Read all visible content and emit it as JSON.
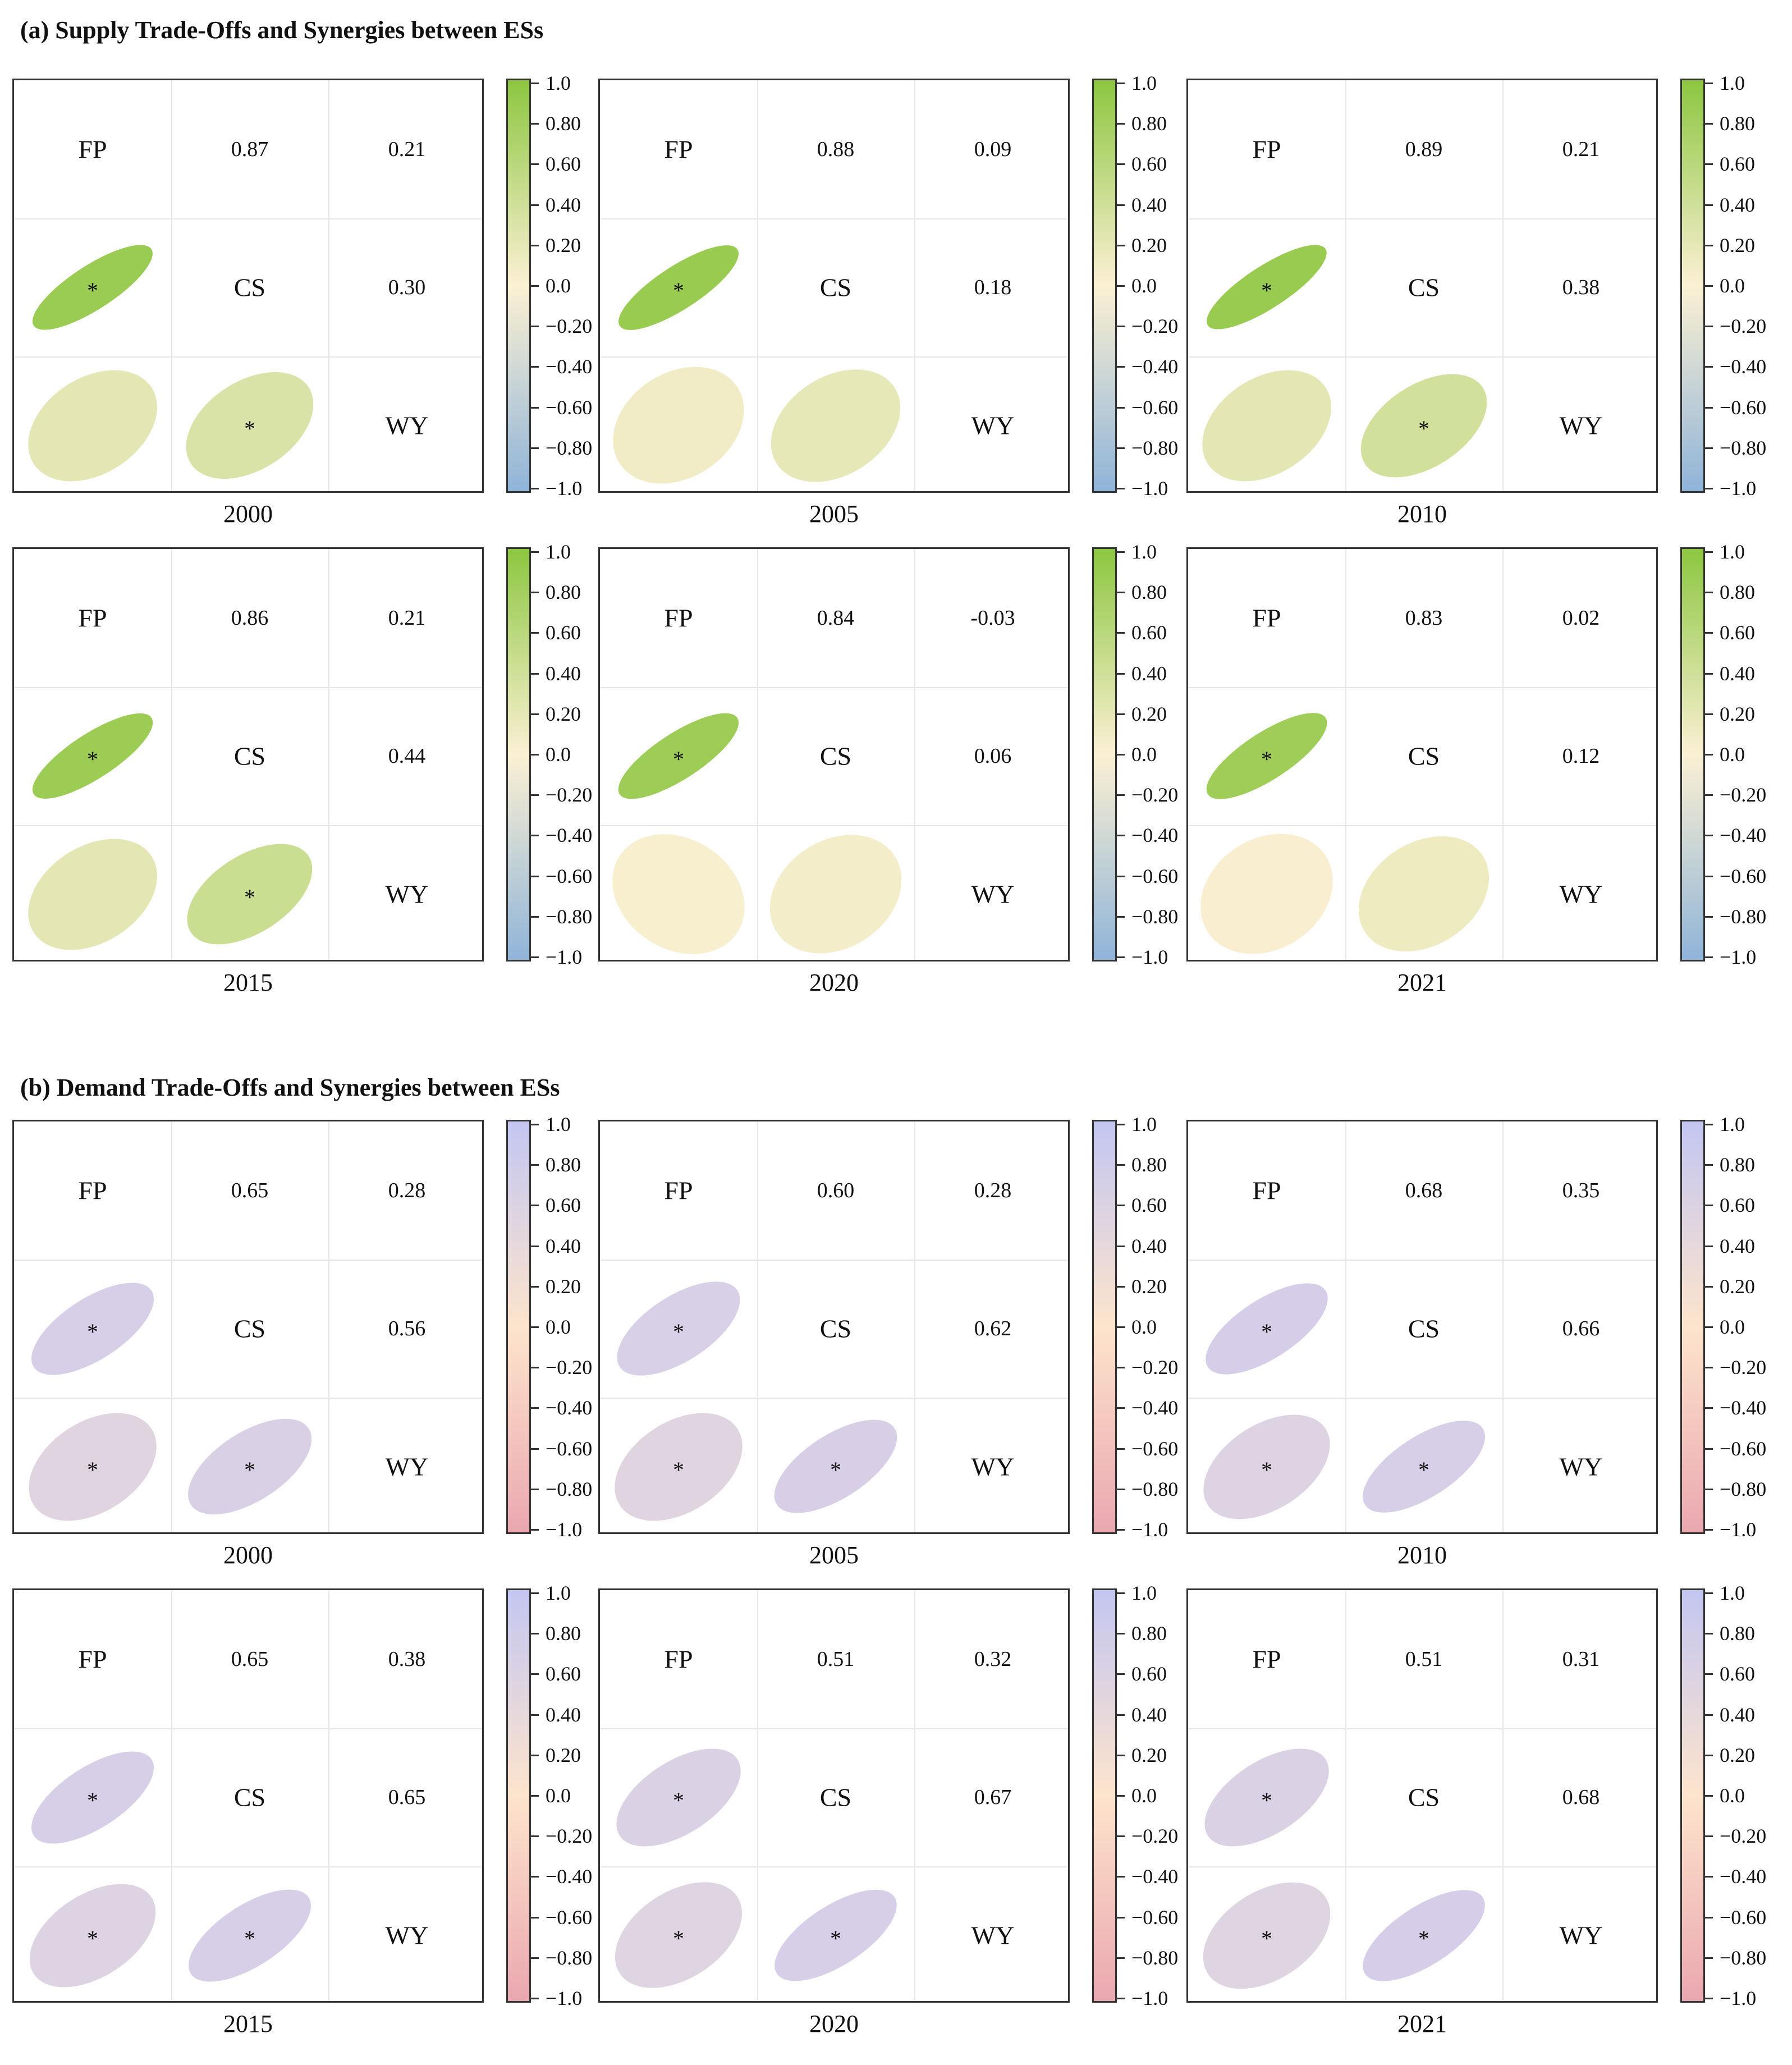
{
  "sections": [
    {
      "title": "(a) Supply Trade-Offs and Synergies between ESs",
      "colorbar": {
        "top": "#8cc63f",
        "mid": "#fbf0d3",
        "bottom": "#8fb4d8"
      },
      "ellipse_low": "#fbf0d3",
      "ellipse_high": "#8cc63f"
    },
    {
      "title": "(b) Demand Trade-Offs and Synergies between ESs",
      "colorbar": {
        "top": "#c3c6f2",
        "mid": "#fde4cc",
        "bottom": "#eaa7b0"
      },
      "ellipse_low": "#e6d8dc",
      "ellipse_high": "#cfcaee"
    }
  ],
  "colorbar_ticks": [
    "1.0",
    "0.80",
    "0.60",
    "0.40",
    "0.20",
    "0.0",
    "−0.20",
    "−0.40",
    "−0.60",
    "−0.80",
    "−1.0"
  ],
  "chart_data": [
    {
      "type": "heatmap",
      "section": "supply",
      "year": "2000",
      "variables": [
        "FP",
        "CS",
        "WY"
      ],
      "matrix": [
        [
          1,
          0.87,
          0.21
        ],
        [
          0.87,
          1,
          0.3
        ],
        [
          0.21,
          0.3,
          1
        ]
      ],
      "labels": {
        "fp_cs": "0.87",
        "fp_wy": "0.21",
        "cs_wy": "0.30"
      },
      "significant": {
        "fp_cs": true,
        "fp_wy": false,
        "cs_wy": true
      },
      "clim": [
        -1,
        1
      ]
    },
    {
      "type": "heatmap",
      "section": "supply",
      "year": "2005",
      "variables": [
        "FP",
        "CS",
        "WY"
      ],
      "matrix": [
        [
          1,
          0.88,
          0.09
        ],
        [
          0.88,
          1,
          0.18
        ],
        [
          0.09,
          0.18,
          1
        ]
      ],
      "labels": {
        "fp_cs": "0.88",
        "fp_wy": "0.09",
        "cs_wy": "0.18"
      },
      "significant": {
        "fp_cs": true,
        "fp_wy": false,
        "cs_wy": false
      },
      "clim": [
        -1,
        1
      ]
    },
    {
      "type": "heatmap",
      "section": "supply",
      "year": "2010",
      "variables": [
        "FP",
        "CS",
        "WY"
      ],
      "matrix": [
        [
          1,
          0.89,
          0.21
        ],
        [
          0.89,
          1,
          0.38
        ],
        [
          0.21,
          0.38,
          1
        ]
      ],
      "labels": {
        "fp_cs": "0.89",
        "fp_wy": "0.21",
        "cs_wy": "0.38"
      },
      "significant": {
        "fp_cs": true,
        "fp_wy": false,
        "cs_wy": true
      },
      "clim": [
        -1,
        1
      ]
    },
    {
      "type": "heatmap",
      "section": "supply",
      "year": "2015",
      "variables": [
        "FP",
        "CS",
        "WY"
      ],
      "matrix": [
        [
          1,
          0.86,
          0.21
        ],
        [
          0.86,
          1,
          0.44
        ],
        [
          0.21,
          0.44,
          1
        ]
      ],
      "labels": {
        "fp_cs": "0.86",
        "fp_wy": "0.21",
        "cs_wy": "0.44"
      },
      "significant": {
        "fp_cs": true,
        "fp_wy": false,
        "cs_wy": true
      },
      "clim": [
        -1,
        1
      ]
    },
    {
      "type": "heatmap",
      "section": "supply",
      "year": "2020",
      "variables": [
        "FP",
        "CS",
        "WY"
      ],
      "matrix": [
        [
          1,
          0.84,
          -0.03
        ],
        [
          0.84,
          1,
          0.06
        ],
        [
          -0.03,
          0.06,
          1
        ]
      ],
      "labels": {
        "fp_cs": "0.84",
        "fp_wy": "-0.03",
        "cs_wy": "0.06"
      },
      "significant": {
        "fp_cs": true,
        "fp_wy": false,
        "cs_wy": false
      },
      "clim": [
        -1,
        1
      ]
    },
    {
      "type": "heatmap",
      "section": "supply",
      "year": "2021",
      "variables": [
        "FP",
        "CS",
        "WY"
      ],
      "matrix": [
        [
          1,
          0.83,
          0.02
        ],
        [
          0.83,
          1,
          0.12
        ],
        [
          0.02,
          0.12,
          1
        ]
      ],
      "labels": {
        "fp_cs": "0.83",
        "fp_wy": "0.02",
        "cs_wy": "0.12"
      },
      "significant": {
        "fp_cs": true,
        "fp_wy": false,
        "cs_wy": false
      },
      "clim": [
        -1,
        1
      ]
    },
    {
      "type": "heatmap",
      "section": "demand",
      "year": "2000",
      "variables": [
        "FP",
        "CS",
        "WY"
      ],
      "matrix": [
        [
          1,
          0.65,
          0.28
        ],
        [
          0.65,
          1,
          0.56
        ],
        [
          0.28,
          0.56,
          1
        ]
      ],
      "labels": {
        "fp_cs": "0.65",
        "fp_wy": "0.28",
        "cs_wy": "0.56"
      },
      "significant": {
        "fp_cs": true,
        "fp_wy": true,
        "cs_wy": true
      },
      "clim": [
        -1,
        1
      ]
    },
    {
      "type": "heatmap",
      "section": "demand",
      "year": "2005",
      "variables": [
        "FP",
        "CS",
        "WY"
      ],
      "matrix": [
        [
          1,
          0.6,
          0.28
        ],
        [
          0.6,
          1,
          0.62
        ],
        [
          0.28,
          0.62,
          1
        ]
      ],
      "labels": {
        "fp_cs": "0.60",
        "fp_wy": "0.28",
        "cs_wy": "0.62"
      },
      "significant": {
        "fp_cs": true,
        "fp_wy": true,
        "cs_wy": true
      },
      "clim": [
        -1,
        1
      ]
    },
    {
      "type": "heatmap",
      "section": "demand",
      "year": "2010",
      "variables": [
        "FP",
        "CS",
        "WY"
      ],
      "matrix": [
        [
          1,
          0.68,
          0.35
        ],
        [
          0.68,
          1,
          0.66
        ],
        [
          0.35,
          0.66,
          1
        ]
      ],
      "labels": {
        "fp_cs": "0.68",
        "fp_wy": "0.35",
        "cs_wy": "0.66"
      },
      "significant": {
        "fp_cs": true,
        "fp_wy": true,
        "cs_wy": true
      },
      "clim": [
        -1,
        1
      ]
    },
    {
      "type": "heatmap",
      "section": "demand",
      "year": "2015",
      "variables": [
        "FP",
        "CS",
        "WY"
      ],
      "matrix": [
        [
          1,
          0.65,
          0.38
        ],
        [
          0.65,
          1,
          0.65
        ],
        [
          0.38,
          0.65,
          1
        ]
      ],
      "labels": {
        "fp_cs": "0.65",
        "fp_wy": "0.38",
        "cs_wy": "0.65"
      },
      "significant": {
        "fp_cs": true,
        "fp_wy": true,
        "cs_wy": true
      },
      "clim": [
        -1,
        1
      ]
    },
    {
      "type": "heatmap",
      "section": "demand",
      "year": "2020",
      "variables": [
        "FP",
        "CS",
        "WY"
      ],
      "matrix": [
        [
          1,
          0.51,
          0.32
        ],
        [
          0.51,
          1,
          0.67
        ],
        [
          0.32,
          0.67,
          1
        ]
      ],
      "labels": {
        "fp_cs": "0.51",
        "fp_wy": "0.32",
        "cs_wy": "0.67"
      },
      "significant": {
        "fp_cs": true,
        "fp_wy": true,
        "cs_wy": true
      },
      "clim": [
        -1,
        1
      ]
    },
    {
      "type": "heatmap",
      "section": "demand",
      "year": "2021",
      "variables": [
        "FP",
        "CS",
        "WY"
      ],
      "matrix": [
        [
          1,
          0.51,
          0.31
        ],
        [
          0.51,
          1,
          0.68
        ],
        [
          0.31,
          0.68,
          1
        ]
      ],
      "labels": {
        "fp_cs": "0.51",
        "fp_wy": "0.31",
        "cs_wy": "0.68"
      },
      "significant": {
        "fp_cs": true,
        "fp_wy": true,
        "cs_wy": true
      },
      "clim": [
        -1,
        1
      ]
    }
  ]
}
